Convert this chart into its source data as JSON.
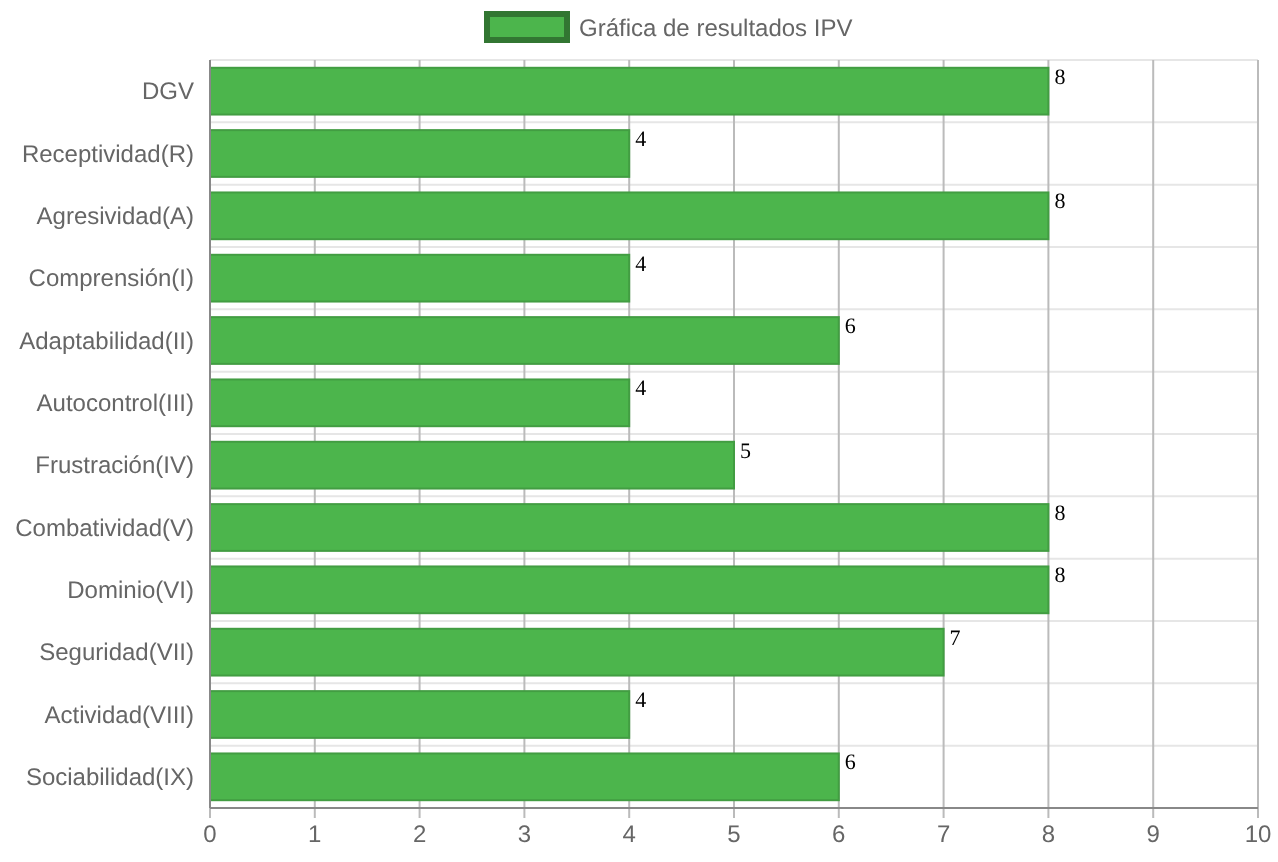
{
  "chart_data": {
    "type": "bar",
    "orientation": "horizontal",
    "categories": [
      "DGV",
      "Receptividad(R)",
      "Agresividad(A)",
      "Comprensión(I)",
      "Adaptabilidad(II)",
      "Autocontrol(III)",
      "Frustración(IV)",
      "Combatividad(V)",
      "Dominio(VI)",
      "Seguridad(VII)",
      "Actividad(VIII)",
      "Sociabilidad(IX)"
    ],
    "series": [
      {
        "name": "Gráfica de resultados IPV",
        "color": "#4cb54c",
        "values": [
          8,
          4,
          8,
          4,
          6,
          4,
          5,
          8,
          8,
          7,
          4,
          6
        ]
      }
    ],
    "xlim": [
      0,
      10
    ],
    "xticks": [
      0,
      1,
      2,
      3,
      4,
      5,
      6,
      7,
      8,
      9,
      10
    ],
    "grid": true,
    "legend": "top",
    "data_labels": true
  }
}
